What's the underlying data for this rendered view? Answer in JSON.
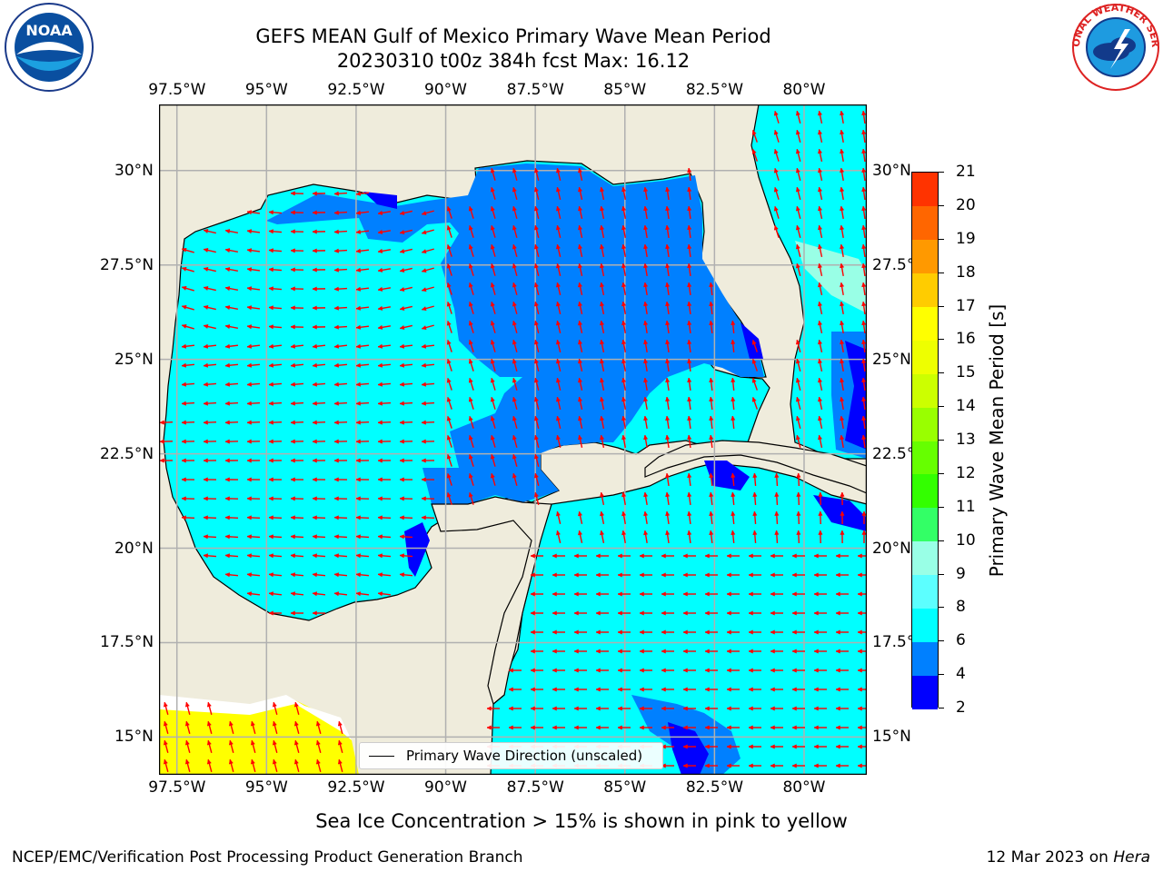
{
  "title": {
    "line1": "GEFS MEAN Gulf of Mexico Primary Wave Mean Period",
    "line2": "20230310 t00z 384h fcst   Max: 16.12"
  },
  "logos": {
    "left": {
      "name": "noaa-logo",
      "text": "NOAA"
    },
    "right": {
      "name": "national-weather-service-logo",
      "text": "NATIONAL WEATHER SERVICE"
    }
  },
  "map": {
    "lon_labels": [
      "97.5°W",
      "95°W",
      "92.5°W",
      "90°W",
      "87.5°W",
      "85°W",
      "82.5°W",
      "80°W"
    ],
    "lat_labels": [
      "30°N",
      "27.5°N",
      "25°N",
      "22.5°N",
      "20°N",
      "17.5°N",
      "15°N"
    ],
    "lon_range": [
      -98,
      -78.25
    ],
    "lat_range": [
      14.0,
      31.75
    ],
    "land_color": "#efecdc",
    "ocean_colors": {
      "light": "#00ffff",
      "medium": "#0080ff",
      "dark": "#0000ff",
      "ice": "#ffff00"
    },
    "arrow_color": "#ff0000",
    "grid": true
  },
  "legend": {
    "entry": "Primary Wave Direction (unscaled)"
  },
  "colorbar": {
    "label": "Primary Wave Mean Period [s]",
    "ticks": [
      "2",
      "4",
      "6",
      "8",
      "9",
      "10",
      "11",
      "12",
      "13",
      "14",
      "15",
      "16",
      "17",
      "18",
      "19",
      "20",
      "21"
    ],
    "colors": [
      "#0000ff",
      "#0080ff",
      "#00ffff",
      "#5cffff",
      "#99ffe6",
      "#33ff66",
      "#33ff00",
      "#66ff00",
      "#99ff00",
      "#ccff00",
      "#eeff00",
      "#ffff00",
      "#ffcc00",
      "#ff9900",
      "#ff6600",
      "#ff3300",
      "#ff0000"
    ]
  },
  "note": "Sea Ice Concentration > 15% is shown in pink to yellow",
  "footer": {
    "left": "NCEP/EMC/Verification Post Processing Product Generation Branch",
    "date": "12 Mar 2023 on ",
    "host": "Hera"
  }
}
